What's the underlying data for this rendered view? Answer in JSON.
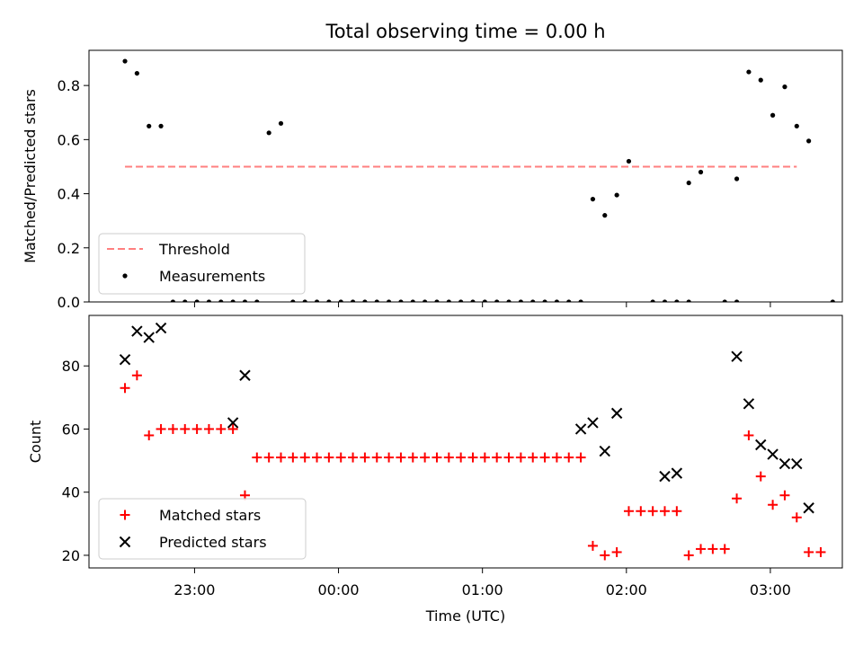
{
  "title": "Total observing time = 0.00 h",
  "chart_data": [
    {
      "type": "scatter",
      "ylabel": "Matched/Predicted stars",
      "xlabel": "",
      "ylim": [
        0,
        0.93
      ],
      "xlim": [
        "22:16",
        "03:30"
      ],
      "yticks": [
        "0.0",
        "0.2",
        "0.4",
        "0.6",
        "0.8"
      ],
      "ytick_values": [
        0,
        0.2,
        0.4,
        0.6,
        0.8
      ],
      "threshold": {
        "label": "Threshold",
        "value": 0.5,
        "from": "22:31",
        "to": "03:11",
        "color": "#ff7f7f"
      },
      "series": [
        {
          "name": "Measurements",
          "color": "#000000",
          "x": [
            "22:31",
            "22:36",
            "22:41",
            "22:46",
            "22:51",
            "22:56",
            "23:01",
            "23:06",
            "23:11",
            "23:16",
            "23:21",
            "23:26",
            "23:31",
            "23:36",
            "23:41",
            "23:46",
            "23:51",
            "23:56",
            "00:01",
            "00:06",
            "00:11",
            "00:16",
            "00:21",
            "00:26",
            "00:31",
            "00:36",
            "00:41",
            "00:46",
            "00:51",
            "00:56",
            "01:01",
            "01:06",
            "01:11",
            "01:16",
            "01:21",
            "01:26",
            "01:31",
            "01:36",
            "01:41",
            "01:46",
            "01:51",
            "01:56",
            "02:01",
            "02:06",
            "02:11",
            "02:16",
            "02:21",
            "02:26",
            "02:31",
            "02:36",
            "02:41",
            "02:46",
            "02:51",
            "02:56",
            "03:01",
            "03:06",
            "03:11",
            "03:16"
          ],
          "y": [
            0.89,
            0.845,
            0.65,
            0.65,
            0,
            0,
            0,
            0,
            0,
            0,
            0,
            0,
            0.625,
            0.66,
            0,
            0,
            0,
            0,
            0,
            0,
            0,
            0,
            0,
            0,
            0,
            0,
            0,
            0,
            0,
            0,
            0,
            0,
            0,
            0,
            0,
            0,
            0,
            0,
            0,
            0.38,
            0.32,
            0.395,
            0.52,
            0,
            0,
            0,
            0,
            0.44,
            0.48,
            0,
            0,
            0.455,
            0.85,
            0.82,
            0.69,
            0.795,
            0.65,
            0.595
          ]
        }
      ],
      "zero_markers_x": [
        "22:51",
        "22:56",
        "23:01",
        "23:06",
        "23:11",
        "23:16",
        "23:21",
        "23:26",
        "23:41",
        "23:46",
        "23:51",
        "23:56",
        "00:01",
        "00:06",
        "00:11",
        "00:16",
        "00:21",
        "00:26",
        "00:31",
        "00:36",
        "00:41",
        "00:46",
        "00:51",
        "00:56",
        "01:01",
        "01:06",
        "01:11",
        "01:16",
        "01:21",
        "01:26",
        "01:31",
        "01:36",
        "01:41",
        "02:11",
        "02:16",
        "02:21",
        "02:26",
        "02:41",
        "02:46",
        "03:26"
      ],
      "legend": "lower-left"
    },
    {
      "type": "scatter",
      "ylabel": "Count",
      "xlabel": "Time (UTC)",
      "ylim": [
        16,
        96
      ],
      "xlim": [
        "22:16",
        "03:30"
      ],
      "yticks": [
        "20",
        "40",
        "60",
        "80"
      ],
      "ytick_values": [
        20,
        40,
        60,
        80
      ],
      "xticks": [
        "23:00",
        "00:00",
        "01:00",
        "02:00",
        "03:00"
      ],
      "series": [
        {
          "name": "Matched stars",
          "marker": "+",
          "color": "#ff0000",
          "x": [
            "22:31",
            "22:36",
            "22:41",
            "22:46",
            "22:51",
            "22:56",
            "23:01",
            "23:06",
            "23:11",
            "23:16",
            "23:21",
            "23:26",
            "23:31",
            "23:36",
            "23:41",
            "23:46",
            "23:51",
            "23:56",
            "00:01",
            "00:06",
            "00:11",
            "00:16",
            "00:21",
            "00:26",
            "00:31",
            "00:36",
            "00:41",
            "00:46",
            "00:51",
            "00:56",
            "01:01",
            "01:06",
            "01:11",
            "01:16",
            "01:21",
            "01:26",
            "01:31",
            "01:36",
            "01:41",
            "01:46",
            "01:51",
            "01:56",
            "02:01",
            "02:06",
            "02:11",
            "02:16",
            "02:21",
            "02:26",
            "02:31",
            "02:36",
            "02:41",
            "02:46",
            "02:51",
            "02:56",
            "03:01",
            "03:06",
            "03:11",
            "03:16",
            "03:21"
          ],
          "y": [
            73,
            77,
            58,
            60,
            60,
            60,
            60,
            60,
            60,
            60,
            39,
            51,
            51,
            51,
            51,
            51,
            51,
            51,
            51,
            51,
            51,
            51,
            51,
            51,
            51,
            51,
            51,
            51,
            51,
            51,
            51,
            51,
            51,
            51,
            51,
            51,
            51,
            51,
            51,
            23,
            20,
            21,
            34,
            34,
            34,
            34,
            34,
            20,
            22,
            22,
            22,
            38,
            58,
            45,
            36,
            39,
            32,
            21,
            21
          ]
        },
        {
          "name": "Predicted stars",
          "marker": "x",
          "color": "#000000",
          "x": [
            "22:31",
            "22:36",
            "22:41",
            "22:46",
            "23:16",
            "23:21",
            "01:41",
            "01:46",
            "01:51",
            "01:56",
            "02:16",
            "02:21",
            "02:46",
            "02:51",
            "02:56",
            "03:01",
            "03:06",
            "03:11",
            "03:16"
          ],
          "y": [
            82,
            91,
            89,
            92,
            62,
            77,
            60,
            62,
            53,
            65,
            45,
            46,
            83,
            68,
            55,
            52,
            49,
            49,
            35
          ]
        }
      ],
      "legend": "lower-left"
    }
  ]
}
